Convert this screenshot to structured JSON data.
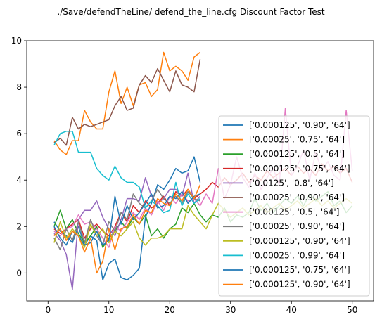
{
  "chart_data": {
    "type": "line",
    "title": "./Save/defendTheLine/ defend_the_line.cfg Discount Factor Test",
    "xlabel": "",
    "ylabel": "",
    "xlim": [
      -3.5,
      53.5
    ],
    "ylim": [
      -1.2,
      10
    ],
    "xticks": [
      0,
      10,
      20,
      30,
      40,
      50
    ],
    "yticks": [
      0,
      2,
      4,
      6,
      8,
      10
    ],
    "grid": false,
    "legend_position": "lower right",
    "series": [
      {
        "name": "['0.000125', '0.90', '64']",
        "color": "#1f77b4",
        "x": [
          1,
          2,
          3,
          4,
          5,
          6,
          7,
          8,
          9,
          10,
          11,
          12,
          13,
          14,
          15,
          16,
          17,
          18,
          19,
          20,
          21,
          22,
          23,
          24,
          25
        ],
        "y": [
          2.2,
          1.8,
          1.6,
          1.3,
          2.0,
          1.2,
          1.6,
          1.4,
          -0.3,
          0.4,
          0.6,
          -0.2,
          -0.3,
          -0.1,
          0.2,
          2.4,
          3.0,
          3.8,
          3.6,
          4.0,
          4.5,
          4.3,
          4.4,
          5.0,
          3.9
        ]
      },
      {
        "name": "['0.00025', '0.75', '64']",
        "color": "#ff7f0e",
        "x": [
          1,
          2,
          3,
          4,
          5,
          6,
          7,
          8,
          9,
          10,
          11,
          12,
          13,
          14,
          15,
          16,
          17,
          18,
          19,
          20,
          21,
          22,
          23,
          24,
          25
        ],
        "y": [
          5.7,
          5.3,
          5.1,
          5.7,
          5.7,
          7.0,
          6.5,
          6.2,
          6.2,
          7.8,
          8.7,
          7.3,
          8.0,
          7.2,
          8.1,
          8.2,
          7.6,
          7.9,
          9.5,
          8.7,
          8.9,
          8.7,
          8.3,
          9.3,
          9.5
        ]
      },
      {
        "name": "['0.000125', '0.5', '64']",
        "color": "#2ca02c",
        "x": [
          1,
          2,
          3,
          4,
          5,
          6,
          7,
          8,
          9,
          10,
          11,
          12,
          13,
          14,
          15,
          16,
          17,
          18,
          19,
          20,
          21,
          22,
          23,
          24,
          25,
          26,
          27,
          28,
          29,
          30,
          31,
          32,
          33,
          34,
          35,
          36,
          37,
          38,
          39,
          40,
          41,
          42,
          43,
          44,
          45,
          46,
          47,
          48,
          49,
          50
        ],
        "y": [
          2.0,
          2.7,
          1.9,
          2.3,
          1.7,
          1.3,
          1.6,
          2.0,
          1.1,
          1.5,
          1.8,
          2.2,
          1.9,
          2.4,
          2.1,
          2.5,
          1.6,
          1.9,
          1.5,
          1.9,
          2.1,
          2.8,
          2.6,
          3.0,
          2.5,
          2.2,
          2.5,
          2.4,
          2.8,
          2.2,
          2.5,
          2.4,
          2.6,
          3.2,
          2.7,
          3.0,
          2.6,
          2.9,
          3.2,
          3.0,
          3.3,
          2.9,
          3.4,
          3.1,
          3.3,
          3.5,
          2.9,
          3.1,
          2.6,
          2.9
        ]
      },
      {
        "name": "['0.000125', '0.75', '64']",
        "color": "#d62728",
        "x": [
          1,
          2,
          3,
          4,
          5,
          6,
          7,
          8,
          9,
          10,
          11,
          12,
          13,
          14,
          15,
          16,
          17,
          18,
          19,
          20,
          21,
          22,
          23,
          24,
          25,
          26,
          27,
          28,
          29,
          30,
          31,
          32,
          33,
          34,
          35,
          36,
          37,
          38,
          39,
          40,
          41,
          42,
          43,
          44,
          45,
          46,
          47,
          48,
          49,
          50
        ],
        "y": [
          1.9,
          1.7,
          1.9,
          2.1,
          2.3,
          1.5,
          1.9,
          2.1,
          1.8,
          1.6,
          2.0,
          2.6,
          2.2,
          2.9,
          2.6,
          3.1,
          2.8,
          3.0,
          3.3,
          2.9,
          3.5,
          3.3,
          3.6,
          3.2,
          3.4,
          3.6,
          3.9,
          3.7,
          4.1,
          3.8,
          4.0,
          4.3,
          3.9,
          4.2,
          4.0,
          4.4,
          4.1,
          4.3,
          4.5,
          4.2,
          4.6,
          4.3,
          4.5,
          4.2,
          4.7,
          4.4,
          4.6,
          4.3,
          4.5,
          3.9
        ]
      },
      {
        "name": "['0.0125', '0.8', '64']",
        "color": "#9467bd",
        "x": [
          1,
          2,
          3,
          4,
          5,
          6,
          7,
          8,
          9,
          10,
          11,
          12,
          13,
          14,
          15,
          16,
          17,
          18,
          19,
          20,
          21,
          22,
          23,
          24,
          25
        ],
        "y": [
          1.7,
          1.4,
          0.8,
          -0.7,
          2.3,
          2.7,
          2.7,
          3.1,
          2.4,
          1.9,
          1.6,
          2.3,
          3.2,
          3.2,
          3.1,
          4.1,
          3.3,
          3.0,
          3.2,
          3.6,
          3.6,
          3.3,
          4.3,
          3.0,
          3.3
        ]
      },
      {
        "name": "['0.00025', '0.90', '64']",
        "color": "#8c564b",
        "x": [
          1,
          2,
          3,
          4,
          5,
          6,
          7,
          8,
          9,
          10,
          11,
          12,
          13,
          14,
          15,
          16,
          17,
          18,
          19,
          20,
          21,
          22,
          23,
          24,
          25
        ],
        "y": [
          5.6,
          5.8,
          5.5,
          6.7,
          6.2,
          6.4,
          6.3,
          6.4,
          6.5,
          6.6,
          7.2,
          7.6,
          7.0,
          7.1,
          8.1,
          8.5,
          8.2,
          8.8,
          8.3,
          7.8,
          8.7,
          8.1,
          8.0,
          7.8,
          9.2
        ]
      },
      {
        "name": "['0.00125', '0.5', '64']",
        "color": "#e377c2",
        "x": [
          1,
          2,
          3,
          4,
          5,
          6,
          7,
          8,
          9,
          10,
          11,
          12,
          13,
          14,
          15,
          16,
          17,
          18,
          19,
          20,
          21,
          22,
          23,
          24,
          25,
          26,
          27,
          28,
          29,
          30,
          31,
          32,
          33,
          34,
          35,
          36,
          37,
          38,
          39,
          40,
          41,
          42,
          43,
          44,
          45,
          46,
          47,
          48,
          49,
          50
        ],
        "y": [
          1.8,
          1.6,
          1.9,
          2.0,
          2.5,
          2.1,
          2.2,
          1.9,
          1.5,
          1.1,
          2.0,
          1.8,
          2.2,
          2.6,
          2.3,
          2.8,
          2.5,
          3.1,
          2.7,
          3.3,
          3.0,
          3.4,
          3.1,
          3.2,
          2.9,
          3.4,
          3.0,
          4.5,
          3.2,
          3.8,
          5.0,
          4.1,
          3.7,
          4.3,
          3.6,
          4.1,
          4.5,
          3.8,
          7.1,
          4.2,
          4.6,
          5.3,
          4.0,
          5.2,
          4.4,
          4.8,
          4.2,
          4.0,
          7.0,
          4.4
        ]
      },
      {
        "name": "['0.00025', '0.90', '64']",
        "color": "#7f7f7f",
        "x": [
          1,
          2,
          3,
          4,
          5,
          6,
          7,
          8,
          9,
          10,
          11,
          12,
          13,
          14,
          15,
          16,
          17,
          18,
          19,
          20,
          21,
          22,
          23,
          24,
          25
        ],
        "y": [
          1.5,
          1.0,
          1.9,
          1.4,
          2.2,
          1.3,
          2.3,
          1.6,
          1.2,
          2.2,
          1.8,
          2.6,
          2.3,
          3.4,
          3.0,
          2.8,
          3.1,
          3.6,
          3.2,
          3.0,
          3.3,
          3.0,
          3.5,
          3.2,
          3.1
        ]
      },
      {
        "name": "['0.000125', '0.90', '64']",
        "color": "#bcbd22",
        "x": [
          1,
          2,
          3,
          4,
          5,
          6,
          7,
          8,
          9,
          10,
          11,
          12,
          13,
          14,
          15,
          16,
          17,
          18,
          19,
          20,
          21,
          22,
          23,
          24,
          25,
          26,
          27,
          28,
          29,
          30,
          31,
          32,
          33,
          34,
          35,
          36,
          37,
          38,
          39,
          40,
          41,
          42,
          43,
          44,
          45,
          46,
          47,
          48,
          49,
          50
        ],
        "y": [
          1.3,
          2.2,
          1.5,
          1.9,
          1.6,
          1.1,
          2.1,
          1.6,
          1.9,
          1.3,
          1.8,
          1.6,
          1.9,
          2.2,
          1.5,
          1.2,
          1.5,
          1.5,
          1.6,
          1.9,
          1.9,
          1.9,
          2.9,
          2.5,
          2.2,
          1.9,
          2.5,
          3.0,
          2.7,
          2.4,
          2.6,
          2.8,
          2.5,
          2.7,
          2.9,
          2.6,
          2.8,
          3.0,
          2.7,
          2.9,
          3.1,
          2.8,
          3.0,
          3.2,
          2.9,
          3.1,
          2.8,
          3.0,
          3.2,
          3.0
        ]
      },
      {
        "name": "['0.00025', '0.99', '64']",
        "color": "#17becf",
        "x": [
          1,
          2,
          3,
          4,
          5,
          6,
          7,
          8,
          9,
          10,
          11,
          12,
          13,
          14,
          15,
          16,
          17,
          18,
          19,
          20,
          21,
          22,
          23,
          24,
          25
        ],
        "y": [
          5.5,
          6.0,
          6.1,
          6.1,
          5.2,
          5.2,
          5.2,
          4.5,
          4.2,
          4.0,
          4.6,
          4.1,
          3.9,
          3.9,
          3.7,
          2.8,
          3.1,
          2.9,
          2.6,
          2.7,
          3.9,
          2.9,
          3.4,
          3.0,
          3.2
        ]
      },
      {
        "name": "['0.000125', '0.75', '64']",
        "color": "#1f77b4",
        "x": [
          1,
          2,
          3,
          4,
          5,
          6,
          7,
          8,
          9,
          10,
          11,
          12,
          13,
          14,
          15,
          16,
          17,
          18,
          19,
          20,
          21,
          22,
          23,
          24,
          25
        ],
        "y": [
          2.0,
          1.5,
          1.2,
          1.8,
          1.6,
          1.2,
          1.3,
          1.8,
          1.2,
          1.4,
          3.3,
          2.1,
          2.9,
          2.3,
          2.6,
          3.0,
          3.4,
          2.8,
          2.9,
          3.3,
          3.2,
          3.5,
          3.0,
          3.3,
          3.4
        ]
      },
      {
        "name": "['0.000125', '0.90', '64']",
        "color": "#ff7f0e",
        "x": [
          1,
          2,
          3,
          4,
          5,
          6,
          7,
          8,
          9,
          10,
          11,
          12,
          13,
          14,
          15,
          16,
          17,
          18,
          19,
          20,
          21,
          22,
          23,
          24,
          25
        ],
        "y": [
          1.6,
          1.9,
          1.4,
          1.8,
          1.6,
          0.9,
          1.5,
          0.0,
          0.5,
          1.9,
          1.0,
          1.9,
          2.0,
          2.5,
          2.1,
          2.7,
          2.6,
          3.2,
          3.0,
          2.9,
          3.4,
          3.1,
          3.6,
          3.2,
          3.8
        ]
      }
    ]
  }
}
